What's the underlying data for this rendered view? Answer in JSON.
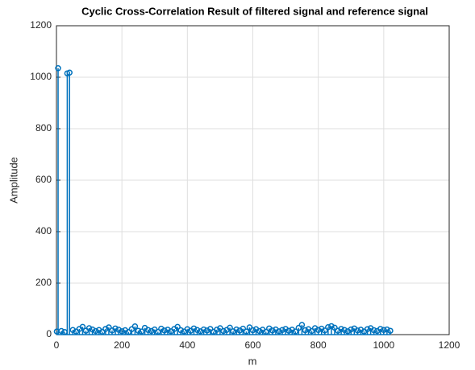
{
  "chart_data": {
    "type": "stem",
    "title": "Cyclic Cross-Correlation Result of filtered signal and reference signal",
    "xlabel": "m",
    "ylabel": "Amplitude",
    "xlim": [
      0,
      1200
    ],
    "xticks": [
      0,
      200,
      400,
      600,
      800,
      1000,
      1200
    ],
    "ylim": [
      0,
      1200
    ],
    "yticks": [
      0,
      200,
      400,
      600,
      800,
      1000,
      1200
    ],
    "grid": true,
    "color": "#0072bd",
    "x": [
      1,
      5,
      15,
      25,
      33,
      40,
      50,
      60,
      70,
      80,
      90,
      100,
      110,
      120,
      130,
      140,
      150,
      160,
      170,
      180,
      190,
      200,
      210,
      220,
      230,
      240,
      250,
      260,
      270,
      280,
      290,
      300,
      310,
      320,
      330,
      340,
      350,
      360,
      370,
      380,
      390,
      400,
      410,
      420,
      430,
      440,
      450,
      460,
      470,
      480,
      490,
      500,
      510,
      520,
      530,
      540,
      550,
      560,
      570,
      580,
      590,
      600,
      610,
      620,
      630,
      640,
      650,
      660,
      670,
      680,
      690,
      700,
      710,
      720,
      730,
      740,
      750,
      760,
      770,
      780,
      790,
      800,
      810,
      820,
      830,
      840,
      850,
      860,
      870,
      880,
      890,
      900,
      910,
      920,
      930,
      940,
      950,
      960,
      970,
      980,
      990,
      1000,
      1010,
      1020
    ],
    "values": [
      12,
      1035,
      14,
      10,
      1015,
      1018,
      18,
      12,
      22,
      30,
      15,
      25,
      20,
      14,
      18,
      11,
      22,
      28,
      16,
      24,
      19,
      13,
      17,
      10,
      21,
      32,
      15,
      12,
      26,
      18,
      14,
      20,
      11,
      23,
      16,
      19,
      13,
      22,
      30,
      17,
      12,
      21,
      15,
      24,
      18,
      13,
      20,
      16,
      22,
      11,
      19,
      25,
      14,
      18,
      27,
      13,
      20,
      16,
      23,
      12,
      28,
      17,
      21,
      14,
      19,
      11,
      24,
      16,
      20,
      13,
      18,
      22,
      15,
      19,
      12,
      26,
      38,
      17,
      21,
      14,
      25,
      18,
      23,
      16,
      29,
      33,
      27,
      15,
      22,
      18,
      13,
      20,
      24,
      16,
      19,
      12,
      21,
      25,
      17,
      14,
      22,
      18,
      20,
      15
    ]
  }
}
